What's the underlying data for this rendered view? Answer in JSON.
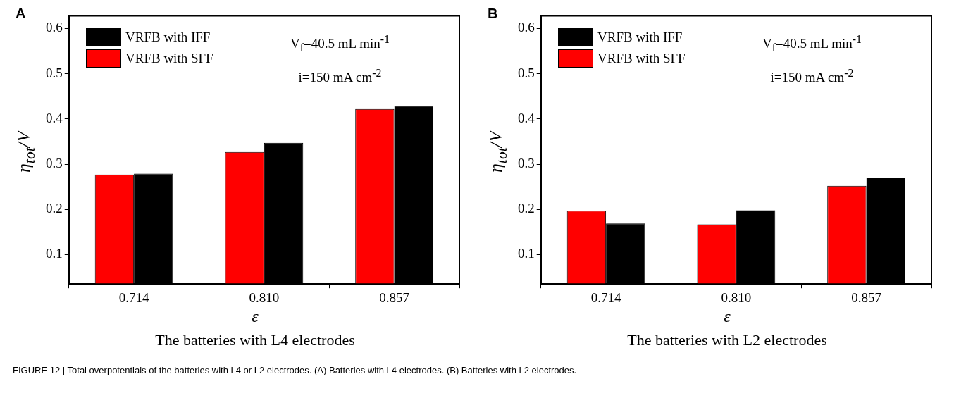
{
  "chart_data": [
    {
      "type": "bar",
      "title": "A",
      "xlabel": "ε",
      "ylabel": "η$_{tot}$/V",
      "categories": [
        "0.714",
        "0.810",
        "0.857"
      ],
      "series": [
        {
          "name": "VRFB with SFF",
          "color": "#ff0000",
          "values": [
            0.277,
            0.327,
            0.422
          ]
        },
        {
          "name": "VRFB with IFF",
          "color": "#000000",
          "values": [
            0.279,
            0.347,
            0.429
          ]
        }
      ],
      "ylim": [
        0.035,
        0.628
      ],
      "yticks": [
        0.1,
        0.2,
        0.3,
        0.4,
        0.5,
        0.6
      ],
      "grid": false,
      "legend": "top left",
      "annotations": [
        "V$_{f}$=40.5 mL min$^{-1}$",
        "i=150 mA cm$^{-2}$",
        "The batteries with L4 electrodes"
      ]
    },
    {
      "type": "bar",
      "title": "B",
      "xlabel": "ε",
      "ylabel": "η$_{tot}$/V",
      "categories": [
        "0.714",
        "0.810",
        "0.857"
      ],
      "series": [
        {
          "name": "VRFB with SFF",
          "color": "#ff0000",
          "values": [
            0.197,
            0.167,
            0.252
          ]
        },
        {
          "name": "VRFB with IFF",
          "color": "#000000",
          "values": [
            0.169,
            0.198,
            0.269
          ]
        }
      ],
      "ylim": [
        0.035,
        0.628
      ],
      "yticks": [
        0.1,
        0.2,
        0.3,
        0.4,
        0.5,
        0.6
      ],
      "grid": false,
      "legend": "top left",
      "annotations": [
        "V$_{f}$=40.5 mL min$^{-1}$",
        "i=150 mA cm$^{-2}$",
        "The batteries with L2 electrodes",
        "FIGURE 12 | Total overpotentials of the batteries with L4 or L2 electrodes. (A) Batteries with L4 electrodes. (B) Batteries with L2 electrodes."
      ]
    }
  ]
}
